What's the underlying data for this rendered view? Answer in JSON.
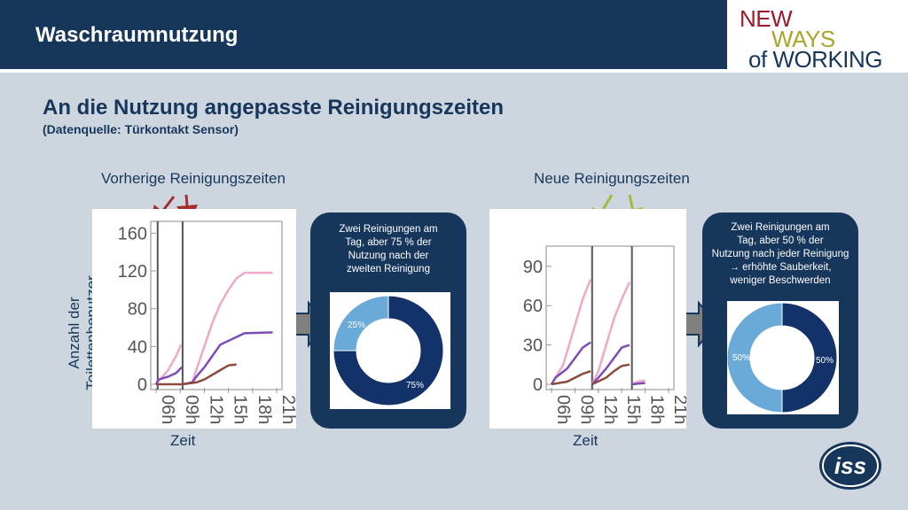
{
  "header": {
    "title": "Waschraumnutzung"
  },
  "logo": {
    "line1": "NEW",
    "line2": "WAYS",
    "line3": "of WORKING",
    "iss": "iss"
  },
  "main": {
    "title": "An die Nutzung angepasste Reinigungszeiten",
    "subtitle": "(Datenquelle: Türkontakt Sensor)"
  },
  "left": {
    "label": "Vorherige Reinigungszeiten",
    "ylabel": "Anzahl der Toilettenbenutzer",
    "xlabel": "Zeit",
    "box_text": [
      "Zwei Reinigungen am",
      "Tag, aber 75 % der",
      "Nutzung nach der",
      "zweiten Reinigung"
    ]
  },
  "right": {
    "label": "Neue Reinigungszeiten",
    "xlabel": "Zeit",
    "box_text": [
      "Zwei Reinigungen am",
      "Tag, aber 50 % der",
      "Nutzung nach jeder Reinigung",
      "→ erhöhte Sauberkeit,",
      "weniger Beschwerden"
    ]
  },
  "colors": {
    "navy": "#16365c",
    "light_blue": "#6aaad8",
    "dark_blue": "#13326a",
    "pink": "#f0a8c8",
    "purple": "#7c4cb8",
    "brown": "#8b4a3a",
    "arrow_red": "#a62b2b",
    "arrow_green": "#a8b83c"
  },
  "chart_data": [
    {
      "type": "line",
      "x_ticks": [
        "06h",
        "09h",
        "12h",
        "15h",
        "18h",
        "21h"
      ],
      "y_ticks": [
        "0",
        "40",
        "80",
        "120",
        "160"
      ],
      "ylim": [
        0,
        165
      ],
      "cleaning_lines": [
        6.2,
        9.3
      ],
      "series": [
        {
          "color": "pink",
          "points": [
            [
              6,
              0
            ],
            [
              6.5,
              5
            ],
            [
              7.5,
              15
            ],
            [
              8.5,
              30
            ],
            [
              9.1,
              42
            ],
            [
              9.3,
              0
            ],
            [
              10.5,
              2
            ],
            [
              11,
              15
            ],
            [
              12,
              40
            ],
            [
              13,
              65
            ],
            [
              14,
              85
            ],
            [
              15,
              100
            ],
            [
              16,
              112
            ],
            [
              17,
              118
            ],
            [
              20.5,
              118
            ]
          ]
        },
        {
          "color": "purple",
          "points": [
            [
              6,
              0
            ],
            [
              6.3,
              5
            ],
            [
              7.5,
              8
            ],
            [
              8.5,
              12
            ],
            [
              9.2,
              18
            ],
            [
              9.3,
              0
            ],
            [
              10.5,
              2
            ],
            [
              11,
              8
            ],
            [
              12,
              18
            ],
            [
              13,
              30
            ],
            [
              14,
              42
            ],
            [
              16,
              50
            ],
            [
              17,
              54
            ],
            [
              20.5,
              55
            ]
          ]
        },
        {
          "color": "brown",
          "points": [
            [
              6,
              0
            ],
            [
              9.3,
              0
            ],
            [
              11,
              2
            ],
            [
              12,
              5
            ],
            [
              13,
              10
            ],
            [
              14,
              15
            ],
            [
              15,
              20
            ],
            [
              16,
              21
            ]
          ]
        }
      ]
    },
    {
      "type": "pie",
      "labels": [
        "25%",
        "75%"
      ],
      "values": [
        25,
        75
      ]
    },
    {
      "type": "line",
      "x_ticks": [
        "06h",
        "09h",
        "12h",
        "15h",
        "18h",
        "21h"
      ],
      "y_ticks": [
        "0",
        "30",
        "60",
        "90"
      ],
      "ylim": [
        0,
        100
      ],
      "cleaning_lines": [
        11.2,
        16.3
      ],
      "series": [
        {
          "color": "pink",
          "points": [
            [
              6,
              0
            ],
            [
              6.5,
              5
            ],
            [
              7.5,
              15
            ],
            [
              8.5,
              35
            ],
            [
              10,
              65
            ],
            [
              11,
              80
            ],
            [
              11.2,
              0
            ],
            [
              12,
              10
            ],
            [
              13,
              30
            ],
            [
              14,
              50
            ],
            [
              15,
              65
            ],
            [
              16,
              78
            ],
            [
              16.3,
              0
            ],
            [
              17,
              2
            ],
            [
              18,
              3
            ]
          ]
        },
        {
          "color": "purple",
          "points": [
            [
              6,
              0
            ],
            [
              6.5,
              5
            ],
            [
              8,
              12
            ],
            [
              9,
              20
            ],
            [
              10,
              28
            ],
            [
              11,
              32
            ],
            [
              11.2,
              0
            ],
            [
              12,
              5
            ],
            [
              13,
              12
            ],
            [
              14,
              20
            ],
            [
              15,
              28
            ],
            [
              16,
              30
            ],
            [
              16.3,
              0
            ],
            [
              18,
              1
            ]
          ]
        },
        {
          "color": "brown",
          "points": [
            [
              6,
              0
            ],
            [
              8,
              2
            ],
            [
              9,
              5
            ],
            [
              10,
              8
            ],
            [
              11,
              10
            ],
            [
              11.2,
              0
            ],
            [
              13,
              5
            ],
            [
              14,
              10
            ],
            [
              15,
              14
            ],
            [
              16,
              15
            ],
            [
              16.3,
              0
            ]
          ]
        }
      ]
    },
    {
      "type": "pie",
      "labels": [
        "50%",
        "50%"
      ],
      "values": [
        50,
        50
      ]
    }
  ]
}
